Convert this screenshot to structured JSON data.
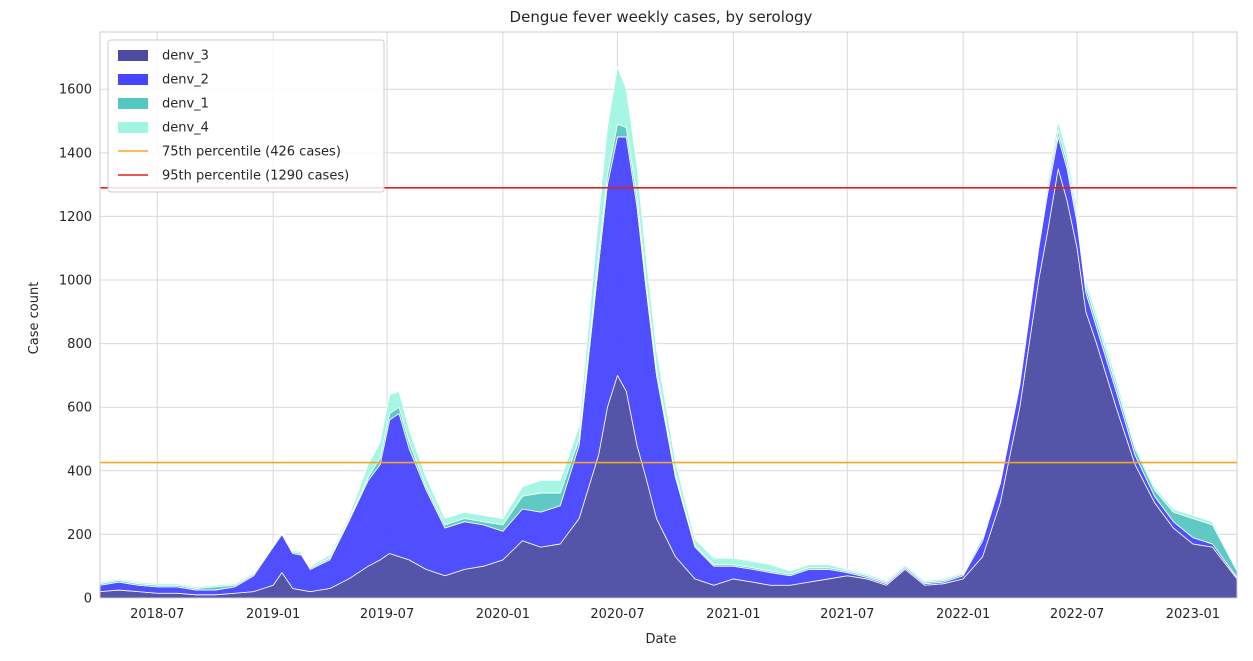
{
  "chart_data": {
    "type": "area",
    "title": "Dengue fever weekly cases, by serology",
    "xlabel": "Date",
    "ylabel": "Case count",
    "xlim": [
      "2018-04-01",
      "2023-03-12"
    ],
    "ylim": [
      0,
      1780
    ],
    "x_tick_labels": [
      "2018-07",
      "2019-01",
      "2019-07",
      "2020-01",
      "2020-07",
      "2021-01",
      "2021-07",
      "2022-01",
      "2022-07",
      "2023-01"
    ],
    "y_tick_labels": [
      "0",
      "200",
      "400",
      "600",
      "800",
      "1000",
      "1200",
      "1400",
      "1600"
    ],
    "grid": true,
    "legend_position": "top-left",
    "stacked": true,
    "x": [
      "2018-04-01",
      "2018-05-01",
      "2018-06-01",
      "2018-07-01",
      "2018-08-01",
      "2018-09-01",
      "2018-10-01",
      "2018-11-01",
      "2018-12-01",
      "2019-01-01",
      "2019-01-15",
      "2019-02-01",
      "2019-02-15",
      "2019-03-01",
      "2019-04-01",
      "2019-05-01",
      "2019-06-01",
      "2019-06-20",
      "2019-07-05",
      "2019-07-20",
      "2019-08-05",
      "2019-09-01",
      "2019-10-01",
      "2019-11-01",
      "2019-12-01",
      "2020-01-01",
      "2020-02-01",
      "2020-03-01",
      "2020-04-01",
      "2020-05-01",
      "2020-06-01",
      "2020-06-15",
      "2020-07-01",
      "2020-07-15",
      "2020-08-01",
      "2020-08-15",
      "2020-09-01",
      "2020-10-01",
      "2020-11-01",
      "2020-12-01",
      "2021-01-01",
      "2021-02-01",
      "2021-03-01",
      "2021-04-01",
      "2021-05-01",
      "2021-06-01",
      "2021-07-01",
      "2021-08-01",
      "2021-09-01",
      "2021-10-01",
      "2021-11-01",
      "2021-12-01",
      "2022-01-01",
      "2022-02-01",
      "2022-03-01",
      "2022-04-01",
      "2022-05-01",
      "2022-05-15",
      "2022-06-01",
      "2022-06-15",
      "2022-07-01",
      "2022-07-15",
      "2022-08-01",
      "2022-09-01",
      "2022-10-01",
      "2022-11-01",
      "2022-12-01",
      "2023-01-01",
      "2023-02-01",
      "2023-03-12"
    ],
    "series": [
      {
        "name": "denv_3",
        "color": "#4b4ba3",
        "values": [
          20,
          25,
          20,
          15,
          15,
          10,
          10,
          15,
          20,
          40,
          80,
          30,
          25,
          20,
          30,
          60,
          100,
          120,
          140,
          130,
          120,
          90,
          70,
          90,
          100,
          120,
          180,
          160,
          170,
          250,
          450,
          600,
          700,
          650,
          480,
          380,
          250,
          130,
          60,
          40,
          60,
          50,
          40,
          40,
          50,
          60,
          70,
          60,
          40,
          90,
          40,
          45,
          60,
          130,
          300,
          600,
          1000,
          1150,
          1350,
          1250,
          1100,
          900,
          800,
          600,
          420,
          300,
          220,
          170,
          160,
          60
        ]
      },
      {
        "name": "denv_2",
        "color": "#4646ff",
        "values": [
          20,
          25,
          20,
          20,
          20,
          15,
          15,
          20,
          50,
          120,
          120,
          110,
          110,
          70,
          90,
          180,
          270,
          300,
          420,
          450,
          350,
          250,
          150,
          150,
          130,
          90,
          100,
          110,
          120,
          230,
          600,
          700,
          750,
          800,
          750,
          600,
          450,
          250,
          100,
          60,
          40,
          40,
          40,
          30,
          40,
          30,
          10,
          5,
          5,
          5,
          5,
          5,
          10,
          50,
          60,
          70,
          100,
          120,
          100,
          100,
          80,
          60,
          50,
          50,
          30,
          20,
          20,
          20,
          10,
          5
        ]
      },
      {
        "name": "denv_1",
        "color": "#56c7c0",
        "values": [
          5,
          5,
          5,
          5,
          5,
          5,
          10,
          5,
          5,
          5,
          5,
          5,
          5,
          5,
          5,
          5,
          10,
          20,
          20,
          20,
          20,
          10,
          10,
          10,
          10,
          20,
          40,
          60,
          40,
          20,
          30,
          30,
          40,
          30,
          30,
          20,
          20,
          10,
          5,
          5,
          5,
          5,
          5,
          5,
          5,
          5,
          5,
          5,
          5,
          5,
          5,
          5,
          5,
          10,
          10,
          10,
          15,
          20,
          20,
          20,
          20,
          20,
          20,
          20,
          20,
          20,
          30,
          60,
          60,
          20
        ]
      },
      {
        "name": "denv_4",
        "color": "#a0f5e0",
        "values": [
          5,
          5,
          5,
          5,
          5,
          5,
          5,
          5,
          5,
          5,
          5,
          5,
          5,
          5,
          10,
          10,
          40,
          50,
          60,
          50,
          40,
          30,
          20,
          20,
          20,
          20,
          30,
          40,
          40,
          40,
          120,
          150,
          180,
          120,
          100,
          80,
          60,
          40,
          20,
          20,
          20,
          20,
          20,
          10,
          10,
          10,
          5,
          5,
          5,
          5,
          5,
          5,
          5,
          5,
          5,
          5,
          10,
          20,
          30,
          30,
          25,
          20,
          20,
          20,
          10,
          10,
          10,
          10,
          10,
          5
        ]
      }
    ],
    "reference_lines": [
      {
        "name": "75th percentile (426 cases)",
        "value": 426,
        "color": "#f5a623"
      },
      {
        "name": "95th percentile (1290 cases)",
        "value": 1290,
        "color": "#e02020"
      }
    ]
  }
}
